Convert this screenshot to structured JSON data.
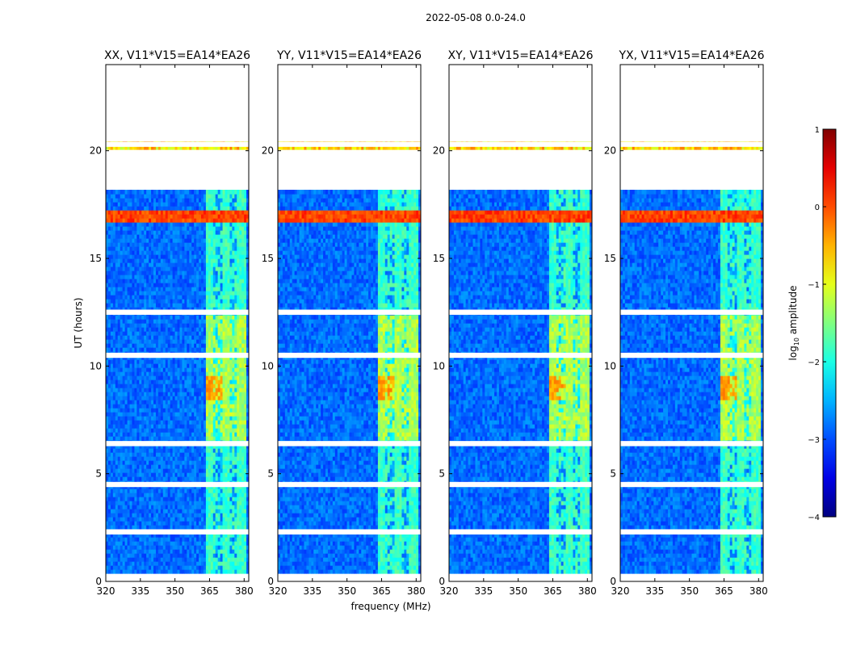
{
  "figure": {
    "suptitle": "2022-05-08 0.0-24.0"
  },
  "chart_data": {
    "type": "heatmap",
    "xlabel": "frequency (MHz)",
    "ylabel": "UT (hours)",
    "xlim": [
      320,
      382
    ],
    "ylim": [
      0,
      24
    ],
    "xticks": [
      320,
      335,
      350,
      365,
      380
    ],
    "yticks": [
      0,
      5,
      10,
      15,
      20
    ],
    "panels": [
      {
        "title": "XX, V11*V15=EA14*EA26",
        "pol": "XX"
      },
      {
        "title": "YY, V11*V15=EA14*EA26",
        "pol": "YY"
      },
      {
        "title": "XY, V11*V15=EA14*EA26",
        "pol": "XY"
      },
      {
        "title": "YX, V11*V15=EA14*EA26",
        "pol": "YX"
      }
    ],
    "colorbar": {
      "label": "log10 amplitude",
      "label_main": "log",
      "label_sub": "10",
      "label_tail": " amplitude",
      "range": [
        -4,
        1
      ],
      "ticks": [
        1,
        0,
        -1,
        -2,
        -3,
        -4
      ],
      "tick_labels": [
        "1",
        "0",
        "−1",
        "−2",
        "−3",
        "−4"
      ],
      "colormap": "jet"
    },
    "no_data_ranges_hours": [
      [
        0,
        0.4
      ],
      [
        18.1,
        20.0
      ],
      [
        20.5,
        24.0
      ]
    ],
    "flagged_bands_hours": [
      2.3,
      4.5,
      6.4,
      10.5,
      12.5,
      20.3
    ],
    "rfi_band_mhz": [
      363.5,
      380.5
    ],
    "colors": {
      "axis": "#000000",
      "background": "#ffffff"
    }
  }
}
